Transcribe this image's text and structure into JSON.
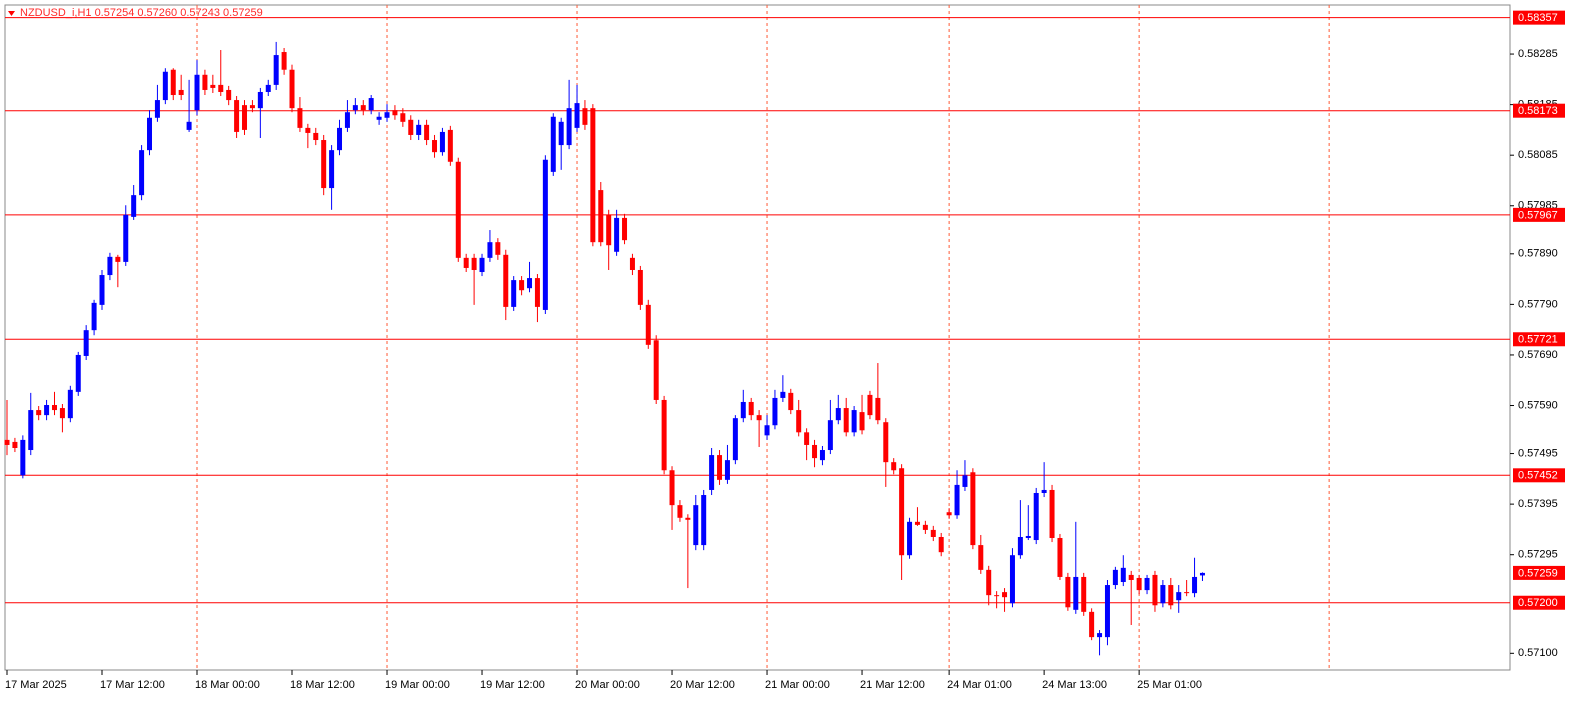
{
  "chart_data": {
    "type": "candlestick",
    "title": "NZDUSD_i,H1  0.57254 0.57260 0.57243 0.57259",
    "bull_color": "#0000ff",
    "bear_color": "#ff0000",
    "level_color": "#ff0000",
    "grid_color": "#ff5a36",
    "categories": [
      "17 Mar 2025",
      null,
      null,
      null,
      null,
      null,
      null,
      null,
      null,
      null,
      null,
      null,
      "17 Mar 12:00",
      null,
      null,
      null,
      null,
      null,
      null,
      null,
      null,
      null,
      null,
      null,
      "18 Mar 00:00",
      null,
      null,
      null,
      null,
      null,
      null,
      null,
      null,
      null,
      null,
      null,
      "18 Mar 12:00",
      null,
      null,
      null,
      null,
      null,
      null,
      null,
      null,
      null,
      null,
      null,
      "19 Mar 00:00",
      null,
      null,
      null,
      null,
      null,
      null,
      null,
      null,
      null,
      null,
      null,
      "19 Mar 12:00",
      null,
      null,
      null,
      null,
      null,
      null,
      null,
      null,
      null,
      null,
      null,
      "20 Mar 00:00",
      null,
      null,
      null,
      null,
      null,
      null,
      null,
      null,
      null,
      null,
      null,
      "20 Mar 12:00",
      null,
      null,
      null,
      null,
      null,
      null,
      null,
      null,
      null,
      null,
      null,
      "21 Mar 00:00",
      null,
      null,
      null,
      null,
      null,
      null,
      null,
      null,
      null,
      null,
      null,
      "21 Mar 12:00",
      null,
      null,
      null,
      null,
      null,
      null,
      null,
      null,
      null,
      null,
      "24 Mar 01:00",
      null,
      null,
      null,
      null,
      null,
      null,
      null,
      null,
      null,
      null,
      null,
      "24 Mar 13:00",
      null,
      null,
      null,
      null,
      null,
      null,
      null,
      null,
      null,
      null,
      null,
      "25 Mar 01:00",
      null,
      null,
      null,
      null,
      null,
      null,
      null,
      null
    ],
    "open": [
      0.57522,
      0.57518,
      0.57452,
      0.57502,
      0.57581,
      0.57571,
      0.57591,
      0.57585,
      0.57565,
      0.57617,
      0.57688,
      0.57739,
      0.57789,
      0.57848,
      0.57884,
      0.57874,
      0.57963,
      0.58006,
      0.58095,
      0.58159,
      0.58194,
      0.58254,
      0.58214,
      0.58135,
      0.58174,
      0.58244,
      0.58224,
      0.58224,
      0.58214,
      0.58194,
      0.58184,
      0.58184,
      0.58178,
      0.5821,
      0.58224,
      0.58289,
      0.58254,
      0.58178,
      0.58139,
      0.58129,
      0.58115,
      0.5802,
      0.58095,
      0.58139,
      0.58174,
      0.58184,
      0.58174,
      0.58155,
      0.58159,
      0.58174,
      0.58168,
      0.58155,
      0.58125,
      0.58145,
      0.58115,
      0.58091,
      0.58135,
      0.58072,
      0.57882,
      0.57882,
      0.57854,
      0.57882,
      0.57913,
      0.57888,
      0.57785,
      0.57838,
      0.57822,
      0.57842,
      0.57779,
      0.58052,
      0.58105,
      0.58105,
      0.58139,
      0.58178,
      0.58178,
      0.58016,
      0.57967,
      0.57894,
      0.57961,
      0.57882,
      0.57858,
      0.57789,
      0.57719,
      0.57601,
      0.57462,
      0.57393,
      0.57368,
      0.57314,
      0.57314,
      0.57423,
      0.57492,
      0.57443,
      0.57482,
      0.57565,
      0.57597,
      0.57571,
      0.57531,
      0.57551,
      0.57605,
      0.57615,
      0.57581,
      0.57537,
      0.57512,
      0.57482,
      0.57502,
      0.57561,
      0.57585,
      0.57537,
      0.57577,
      0.57611,
      0.57605,
      0.57557,
      0.57478,
      0.57466,
      0.57294,
      0.5736,
      0.57354,
      0.57344,
      0.5733,
      0.57379,
      0.57373,
      0.57429,
      0.57458,
      0.57314,
      0.57265,
      0.57215,
      0.57221,
      0.57199,
      0.57294,
      0.57328,
      0.57324,
      0.57417,
      0.57423,
      0.57328,
      0.57251,
      0.57186,
      0.57251,
      0.57182,
      0.57132,
      0.57132,
      0.57235,
      0.57241,
      0.57255,
      0.57249,
      0.57225,
      0.57255,
      0.57199,
      0.57235,
      0.57205,
      0.57221,
      0.57219,
      0.57254
    ],
    "high": [
      0.57601,
      0.57526,
      0.57531,
      0.57615,
      0.57589,
      0.57601,
      0.57617,
      0.57593,
      0.57629,
      0.57696,
      0.57749,
      0.57799,
      0.57858,
      0.57892,
      0.57888,
      0.57986,
      0.58026,
      0.58105,
      0.58174,
      0.58224,
      0.58257,
      0.58257,
      0.58244,
      0.58234,
      0.58273,
      0.58254,
      0.58244,
      0.58293,
      0.58222,
      0.58202,
      0.58194,
      0.58194,
      0.58218,
      0.58234,
      0.58309,
      0.58297,
      0.58264,
      0.582,
      0.58147,
      0.58139,
      0.58125,
      0.58105,
      0.58155,
      0.58194,
      0.58198,
      0.58194,
      0.58204,
      0.5817,
      0.58186,
      0.58184,
      0.58178,
      0.58164,
      0.58155,
      0.58155,
      0.58125,
      0.58139,
      0.58143,
      0.5808,
      0.5789,
      0.5789,
      0.5789,
      0.57937,
      0.57921,
      0.57898,
      0.57846,
      0.57846,
      0.57874,
      0.5785,
      0.58085,
      0.58168,
      0.58159,
      0.58234,
      0.58224,
      0.58194,
      0.58186,
      0.58032,
      0.57977,
      0.57977,
      0.57969,
      0.5789,
      0.57866,
      0.57799,
      0.57729,
      0.57609,
      0.5747,
      0.57403,
      0.57375,
      0.57413,
      0.57423,
      0.57506,
      0.57502,
      0.57512,
      0.57571,
      0.57621,
      0.57605,
      0.57581,
      0.57571,
      0.57621,
      0.5765,
      0.57623,
      0.57601,
      0.57545,
      0.57522,
      0.5751,
      0.57601,
      0.57611,
      0.57605,
      0.57589,
      0.57611,
      0.57619,
      0.57674,
      0.57565,
      0.57486,
      0.57474,
      0.57368,
      0.57389,
      0.57362,
      0.57352,
      0.57338,
      0.57387,
      0.57462,
      0.57482,
      0.57466,
      0.57334,
      0.57273,
      0.57223,
      0.57229,
      0.57308,
      0.57403,
      0.57393,
      0.57427,
      0.57478,
      0.57433,
      0.57336,
      0.57259,
      0.5736,
      0.57259,
      0.57189,
      0.57146,
      0.57245,
      0.57271,
      0.57294,
      0.57263,
      0.57255,
      0.57255,
      0.57263,
      0.57245,
      0.57249,
      0.57235,
      0.57245,
      0.57289,
      0.5726
    ],
    "low": [
      0.57492,
      0.57498,
      0.57446,
      0.57492,
      0.57561,
      0.57561,
      0.57571,
      0.57537,
      0.57557,
      0.57609,
      0.5768,
      0.57729,
      0.57779,
      0.57838,
      0.57824,
      0.57866,
      0.57957,
      0.57996,
      0.58085,
      0.58151,
      0.58186,
      0.58194,
      0.58194,
      0.58131,
      0.58164,
      0.58204,
      0.58208,
      0.58202,
      0.58184,
      0.58119,
      0.58125,
      0.5817,
      0.58119,
      0.58202,
      0.58214,
      0.58244,
      0.5817,
      0.58131,
      0.58099,
      0.58105,
      0.58006,
      0.57977,
      0.58085,
      0.58131,
      0.58166,
      0.58164,
      0.58166,
      0.58145,
      0.58151,
      0.58155,
      0.58141,
      0.58115,
      0.58115,
      0.58105,
      0.5808,
      0.58084,
      0.58064,
      0.57874,
      0.57854,
      0.57789,
      0.57846,
      0.57874,
      0.57878,
      0.57759,
      0.57777,
      0.57808,
      0.57814,
      0.57755,
      0.57771,
      0.58044,
      0.58056,
      0.58097,
      0.58131,
      0.58135,
      0.57905,
      0.57905,
      0.57858,
      0.57886,
      0.57909,
      0.57848,
      0.57779,
      0.57702,
      0.57593,
      0.57454,
      0.57344,
      0.5736,
      0.57229,
      0.57304,
      0.57304,
      0.57413,
      0.57433,
      0.57435,
      0.57474,
      0.57557,
      0.57561,
      0.57508,
      0.57522,
      0.57543,
      0.57597,
      0.57573,
      0.57529,
      0.57482,
      0.57468,
      0.57472,
      0.57494,
      0.57553,
      0.57529,
      0.57529,
      0.57533,
      0.57563,
      0.57553,
      0.57429,
      0.57454,
      0.57245,
      0.57287,
      0.57352,
      0.57336,
      0.57322,
      0.57292,
      0.57366,
      0.57366,
      0.57421,
      0.57306,
      0.57257,
      0.57195,
      0.57189,
      0.57182,
      0.57191,
      0.57287,
      0.57324,
      0.57316,
      0.57409,
      0.5732,
      0.57245,
      0.57184,
      0.57178,
      0.57174,
      0.57126,
      0.57096,
      0.57116,
      0.57227,
      0.57233,
      0.57156,
      0.57217,
      0.57217,
      0.57182,
      0.57191,
      0.57187,
      0.5718,
      0.57213,
      0.57211,
      0.57243
    ],
    "close": [
      0.57512,
      0.57506,
      0.57522,
      0.57581,
      0.57571,
      0.57591,
      0.57581,
      0.57565,
      0.57621,
      0.5769,
      0.57739,
      0.57793,
      0.57848,
      0.57884,
      0.57874,
      0.57967,
      0.58006,
      0.58095,
      0.58159,
      0.58194,
      0.5825,
      0.58204,
      0.58204,
      0.58151,
      0.58244,
      0.58214,
      0.58218,
      0.5821,
      0.58194,
      0.58131,
      0.58135,
      0.58178,
      0.5821,
      0.58224,
      0.58283,
      0.58254,
      0.58178,
      0.58139,
      0.58129,
      0.58115,
      0.5802,
      0.58095,
      0.58139,
      0.5817,
      0.58184,
      0.58174,
      0.58198,
      0.58161,
      0.5817,
      0.58164,
      0.58151,
      0.58125,
      0.58145,
      0.58115,
      0.58091,
      0.58131,
      0.58072,
      0.57882,
      0.57862,
      0.57858,
      0.57882,
      0.57913,
      0.57888,
      0.57785,
      0.57838,
      0.57818,
      0.57842,
      0.57785,
      0.58076,
      0.58161,
      0.58151,
      0.58178,
      0.58188,
      0.58145,
      0.57913,
      0.57913,
      0.57907,
      0.57961,
      0.57917,
      0.57858,
      0.57789,
      0.5771,
      0.57601,
      0.57462,
      0.57393,
      0.57368,
      0.57364,
      0.57393,
      0.57413,
      0.57492,
      0.57443,
      0.57482,
      0.57565,
      0.57597,
      0.57571,
      0.57561,
      0.57551,
      0.57605,
      0.57617,
      0.57581,
      0.57537,
      0.57512,
      0.57486,
      0.57502,
      0.57561,
      0.57585,
      0.57537,
      0.57581,
      0.57541,
      0.57571,
      0.57561,
      0.57478,
      0.57462,
      0.57294,
      0.5736,
      0.57354,
      0.57344,
      0.5733,
      0.573,
      0.57373,
      0.57433,
      0.57452,
      0.57314,
      0.57265,
      0.57215,
      0.57213,
      0.57211,
      0.57294,
      0.5733,
      0.57332,
      0.57417,
      0.57423,
      0.57328,
      0.57251,
      0.57191,
      0.57251,
      0.57182,
      0.57132,
      0.5714,
      0.57235,
      0.57265,
      0.57269,
      0.57245,
      0.57225,
      0.57249,
      0.57195,
      0.57235,
      0.57195,
      0.57221,
      0.57219,
      0.57251,
      0.57259
    ],
    "ylim": [
      0.57067,
      0.58382
    ],
    "yticks": [
      {
        "value": 0.58285,
        "label": "0.58285"
      },
      {
        "value": 0.58185,
        "label": "0.58185"
      },
      {
        "value": 0.58085,
        "label": "0.58085"
      },
      {
        "value": 0.57985,
        "label": "0.57985"
      },
      {
        "value": 0.5789,
        "label": "0.57890"
      },
      {
        "value": 0.5779,
        "label": "0.57790"
      },
      {
        "value": 0.5769,
        "label": "0.57690"
      },
      {
        "value": 0.5759,
        "label": "0.57590"
      },
      {
        "value": 0.57495,
        "label": "0.57495"
      },
      {
        "value": 0.57395,
        "label": "0.57395"
      },
      {
        "value": 0.57295,
        "label": "0.57295"
      },
      {
        "value": 0.571,
        "label": "0.57100"
      }
    ],
    "levels": [
      {
        "value": 0.58357,
        "label": "0.58357"
      },
      {
        "value": 0.58173,
        "label": "0.58173"
      },
      {
        "value": 0.57967,
        "label": "0.57967"
      },
      {
        "value": 0.57721,
        "label": "0.57721"
      },
      {
        "value": 0.57452,
        "label": "0.57452"
      },
      {
        "value": 0.572,
        "label": "0.57200"
      }
    ],
    "bid": {
      "value": 0.57259,
      "label": "0.57259"
    }
  }
}
